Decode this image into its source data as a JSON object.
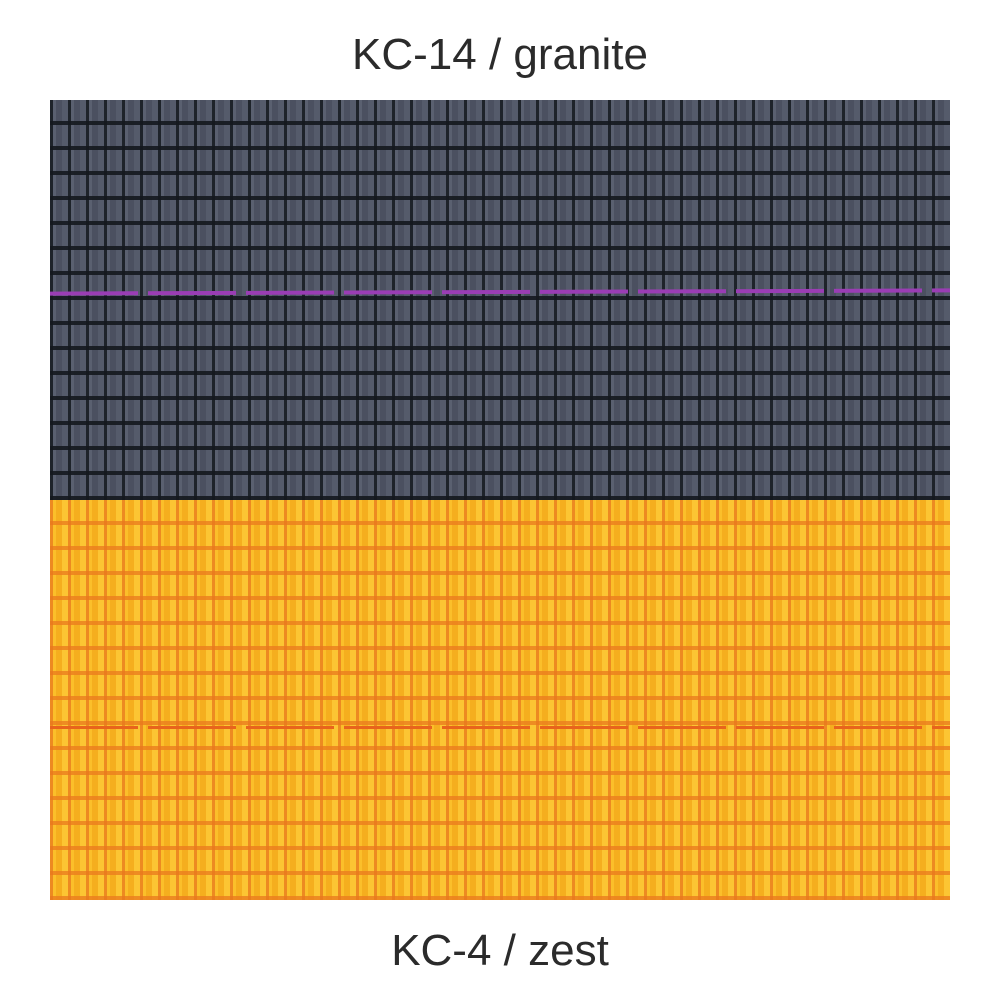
{
  "swatches": [
    {
      "label": "KC-14 / granite",
      "color": "#4e5464",
      "stitch_color": "#9a3db4"
    },
    {
      "label": "KC-4 / zest",
      "color": "#f7b524",
      "stitch_color": "#e8641c"
    }
  ]
}
